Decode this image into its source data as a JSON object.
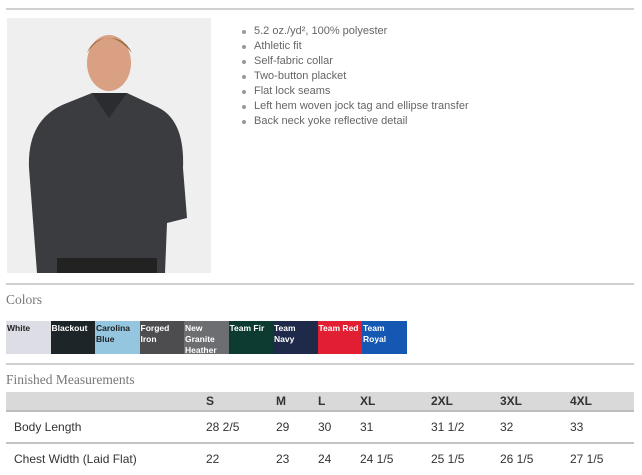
{
  "features": [
    "5.2 oz./yd², 100% polyester",
    "Athletic fit",
    "Self-fabric collar",
    "Two-button placket",
    "Flat lock seams",
    "Left hem woven jock tag and ellipse transfer",
    "Back neck yoke reflective detail"
  ],
  "colors_title": "Colors",
  "colors": [
    {
      "name": "White",
      "hex": "#dcdde5",
      "text": "#222"
    },
    {
      "name": "Blackout",
      "hex": "#1e2528",
      "text": "#fff"
    },
    {
      "name": "Carolina Blue",
      "hex": "#94c6df",
      "text": "#222"
    },
    {
      "name": "Forged Iron",
      "hex": "#4d4d4f",
      "text": "#fff"
    },
    {
      "name": "New Granite Heather",
      "hex": "#6d6e72",
      "text": "#fff"
    },
    {
      "name": "Team Fir",
      "hex": "#0d3b32",
      "text": "#fff"
    },
    {
      "name": "Team Navy",
      "hex": "#1f2a4a",
      "text": "#fff"
    },
    {
      "name": "Team Red",
      "hex": "#e21f32",
      "text": "#fff"
    },
    {
      "name": "Team Royal",
      "hex": "#1558b3",
      "text": "#fff"
    }
  ],
  "measurements_title": "Finished Measurements",
  "measurements": {
    "sizes": [
      "S",
      "M",
      "L",
      "XL",
      "2XL",
      "3XL",
      "4XL"
    ],
    "rows": [
      {
        "label": "Body Length",
        "values": [
          "28 2/5",
          "29",
          "30",
          "31",
          "31 1/2",
          "32",
          "33"
        ]
      },
      {
        "label": "Chest Width (Laid Flat)",
        "values": [
          "22",
          "23",
          "24",
          "24 1/5",
          "25 1/5",
          "26 1/5",
          "27 1/5"
        ]
      }
    ]
  }
}
